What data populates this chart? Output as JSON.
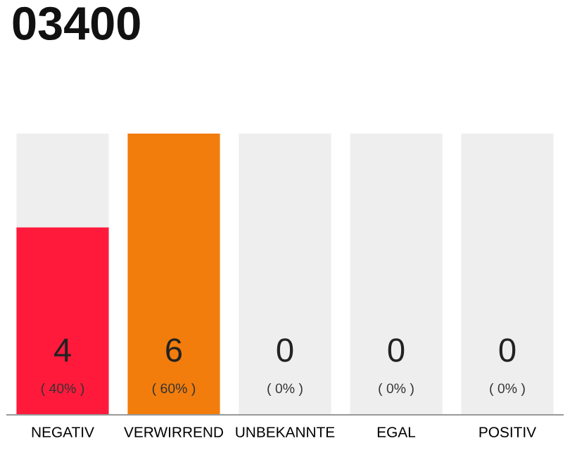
{
  "chart_data": {
    "type": "bar",
    "title": "03400",
    "categories": [
      "NEGATIV",
      "VERWIRREND",
      "UNBEKANNTE",
      "EGAL",
      "POSITIV"
    ],
    "stacked": true,
    "series": [
      {
        "colors": [
          "#ff1a3c",
          "#f27d0c",
          "#f27d0c",
          "#f27d0c",
          "#f27d0c"
        ],
        "values": [
          4,
          6,
          0,
          0,
          0
        ],
        "value_labels": [
          "4",
          "6",
          null,
          null,
          null
        ]
      },
      {
        "color": "#eeeeee",
        "values": [
          2,
          0,
          6,
          6,
          6
        ]
      }
    ],
    "annotations": [
      "( 40% )",
      "( 60% )",
      "( 0% )",
      "( 0% )",
      "( 0% )",
      "0",
      "0",
      "0"
    ],
    "grid": false,
    "legend": false
  }
}
